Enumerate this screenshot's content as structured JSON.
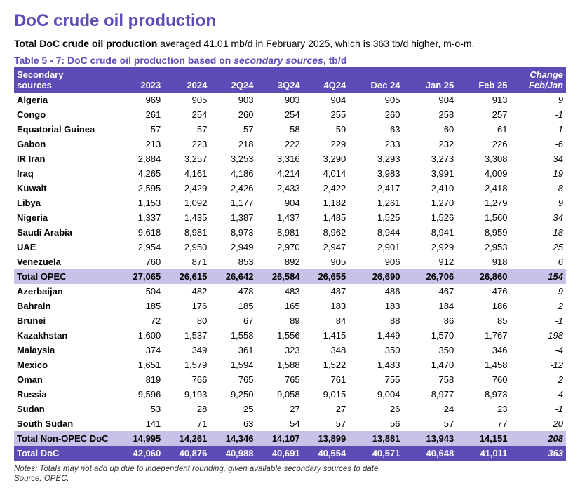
{
  "title": "DoC crude oil production",
  "summary_bold": "Total DoC crude oil production",
  "summary_rest": " averaged 41.01 mb/d in February 2025, which is 363 tb/d higher, m-o-m.",
  "table_caption_prefix": "Table 5 - 7: DoC crude oil production based on ",
  "table_caption_italic": "secondary sources",
  "table_caption_suffix": ", tb/d",
  "header": {
    "top_left": "Secondary",
    "bot_left": "sources",
    "cols": [
      "2023",
      "2024",
      "2Q24",
      "3Q24",
      "4Q24",
      "Dec 24",
      "Jan 25",
      "Feb 25"
    ],
    "change_top": "Change",
    "change_bot": "Feb/Jan"
  },
  "rows": [
    {
      "label": "Algeria",
      "v": [
        "969",
        "905",
        "903",
        "903",
        "904",
        "905",
        "904",
        "913"
      ],
      "chg": "9",
      "cls": ""
    },
    {
      "label": "Congo",
      "v": [
        "261",
        "254",
        "260",
        "254",
        "255",
        "260",
        "258",
        "257"
      ],
      "chg": "-1",
      "cls": ""
    },
    {
      "label": "Equatorial Guinea",
      "v": [
        "57",
        "57",
        "57",
        "58",
        "59",
        "63",
        "60",
        "61"
      ],
      "chg": "1",
      "cls": ""
    },
    {
      "label": "Gabon",
      "v": [
        "213",
        "223",
        "218",
        "222",
        "229",
        "233",
        "232",
        "226"
      ],
      "chg": "-6",
      "cls": ""
    },
    {
      "label": "IR Iran",
      "v": [
        "2,884",
        "3,257",
        "3,253",
        "3,316",
        "3,290",
        "3,293",
        "3,273",
        "3,308"
      ],
      "chg": "34",
      "cls": ""
    },
    {
      "label": "Iraq",
      "v": [
        "4,265",
        "4,161",
        "4,186",
        "4,214",
        "4,014",
        "3,983",
        "3,991",
        "4,009"
      ],
      "chg": "19",
      "cls": ""
    },
    {
      "label": "Kuwait",
      "v": [
        "2,595",
        "2,429",
        "2,426",
        "2,433",
        "2,422",
        "2,417",
        "2,410",
        "2,418"
      ],
      "chg": "8",
      "cls": ""
    },
    {
      "label": "Libya",
      "v": [
        "1,153",
        "1,092",
        "1,177",
        "904",
        "1,182",
        "1,261",
        "1,270",
        "1,279"
      ],
      "chg": "9",
      "cls": ""
    },
    {
      "label": "Nigeria",
      "v": [
        "1,337",
        "1,435",
        "1,387",
        "1,437",
        "1,485",
        "1,525",
        "1,526",
        "1,560"
      ],
      "chg": "34",
      "cls": ""
    },
    {
      "label": "Saudi Arabia",
      "v": [
        "9,618",
        "8,981",
        "8,973",
        "8,981",
        "8,962",
        "8,944",
        "8,941",
        "8,959"
      ],
      "chg": "18",
      "cls": ""
    },
    {
      "label": "UAE",
      "v": [
        "2,954",
        "2,950",
        "2,949",
        "2,970",
        "2,947",
        "2,901",
        "2,929",
        "2,953"
      ],
      "chg": "25",
      "cls": ""
    },
    {
      "label": "Venezuela",
      "v": [
        "760",
        "871",
        "853",
        "892",
        "905",
        "906",
        "912",
        "918"
      ],
      "chg": "6",
      "cls": ""
    },
    {
      "label": "Total  OPEC",
      "v": [
        "27,065",
        "26,615",
        "26,642",
        "26,584",
        "26,655",
        "26,690",
        "26,706",
        "26,860"
      ],
      "chg": "154",
      "cls": "total-opec"
    },
    {
      "label": "Azerbaijan",
      "v": [
        "504",
        "482",
        "478",
        "483",
        "487",
        "486",
        "467",
        "476"
      ],
      "chg": "9",
      "cls": ""
    },
    {
      "label": "Bahrain",
      "v": [
        "185",
        "176",
        "185",
        "165",
        "183",
        "183",
        "184",
        "186"
      ],
      "chg": "2",
      "cls": ""
    },
    {
      "label": "Brunei",
      "v": [
        "72",
        "80",
        "67",
        "89",
        "84",
        "88",
        "86",
        "85"
      ],
      "chg": "-1",
      "cls": ""
    },
    {
      "label": "Kazakhstan",
      "v": [
        "1,600",
        "1,537",
        "1,558",
        "1,556",
        "1,415",
        "1,449",
        "1,570",
        "1,767"
      ],
      "chg": "198",
      "cls": ""
    },
    {
      "label": "Malaysia",
      "v": [
        "374",
        "349",
        "361",
        "323",
        "348",
        "350",
        "350",
        "346"
      ],
      "chg": "-4",
      "cls": ""
    },
    {
      "label": "Mexico",
      "v": [
        "1,651",
        "1,579",
        "1,594",
        "1,588",
        "1,522",
        "1,483",
        "1,470",
        "1,458"
      ],
      "chg": "-12",
      "cls": ""
    },
    {
      "label": "Oman",
      "v": [
        "819",
        "766",
        "765",
        "765",
        "761",
        "755",
        "758",
        "760"
      ],
      "chg": "2",
      "cls": ""
    },
    {
      "label": "Russia",
      "v": [
        "9,596",
        "9,193",
        "9,250",
        "9,058",
        "9,015",
        "9,004",
        "8,977",
        "8,973"
      ],
      "chg": "-4",
      "cls": ""
    },
    {
      "label": "Sudan",
      "v": [
        "53",
        "28",
        "25",
        "27",
        "27",
        "26",
        "24",
        "23"
      ],
      "chg": "-1",
      "cls": ""
    },
    {
      "label": "South Sudan",
      "v": [
        "141",
        "71",
        "63",
        "54",
        "57",
        "56",
        "57",
        "77"
      ],
      "chg": "20",
      "cls": ""
    },
    {
      "label": "Total Non-OPEC DoC",
      "v": [
        "14,995",
        "14,261",
        "14,346",
        "14,107",
        "13,899",
        "13,881",
        "13,943",
        "14,151"
      ],
      "chg": "208",
      "cls": "total-nonopec"
    },
    {
      "label": "Total DoC",
      "v": [
        "42,060",
        "40,876",
        "40,988",
        "40,691",
        "40,554",
        "40,571",
        "40,648",
        "41,011"
      ],
      "chg": "363",
      "cls": "total-doc"
    }
  ],
  "notes": "Notes: Totals may not add up due to independent rounding, given available secondary sources to date.",
  "source": "Source: OPEC."
}
